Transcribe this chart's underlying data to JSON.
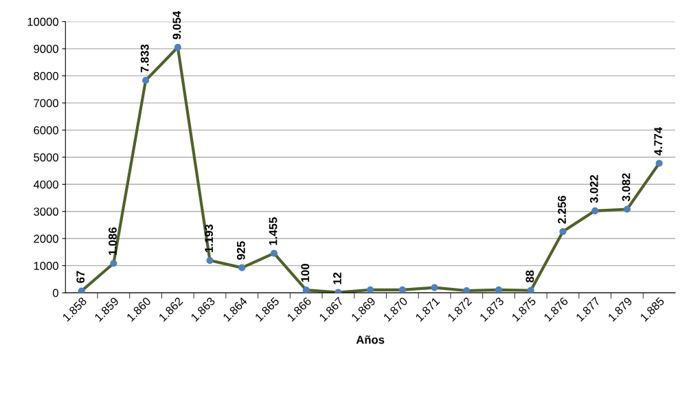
{
  "chart_data": {
    "type": "line",
    "xlabel": "Años",
    "categories": [
      "1.858",
      "1.859",
      "1.860",
      "1.862",
      "1.863",
      "1.864",
      "1.865",
      "1.866",
      "1.867",
      "1.869",
      "1.870",
      "1.871",
      "1.872",
      "1.873",
      "1.875",
      "1.876",
      "1.877",
      "1.879",
      "1.885"
    ],
    "series": [
      {
        "color": "#4f6228",
        "colors": [
          "#4f81bd",
          "#4f81bd",
          "#4f81bd",
          "#4f81bd",
          "#4f81bd",
          "#4f81bd",
          "#4f81bd",
          "#4f81bd",
          "#4f81bd",
          "#4f81bd",
          "#4f81bd",
          "#4f81bd",
          "#4f81bd",
          "#4f81bd",
          "#4f81bd",
          "#4f81bd",
          "#4f81bd",
          "#4f81bd",
          "#4f81bd"
        ],
        "values": [
          67,
          1086,
          7833,
          9054,
          1193,
          925,
          1455,
          100,
          12,
          110,
          110,
          190,
          80,
          110,
          88,
          2256,
          3022,
          3082,
          4774
        ],
        "value_labels": [
          "67",
          "1.086",
          "7.833",
          "9.054",
          "1.193",
          "925",
          "1.455",
          "100",
          "12",
          null,
          null,
          null,
          null,
          null,
          "88",
          "2.256",
          "3.022",
          "3.082",
          "4.774"
        ]
      }
    ],
    "ylim": [
      0,
      10000
    ],
    "yticks": [
      0,
      1000,
      2000,
      3000,
      4000,
      5000,
      6000,
      7000,
      8000,
      9000,
      10000
    ],
    "grid": "y",
    "marker": "circle",
    "line_style": "solid",
    "legend": false
  }
}
